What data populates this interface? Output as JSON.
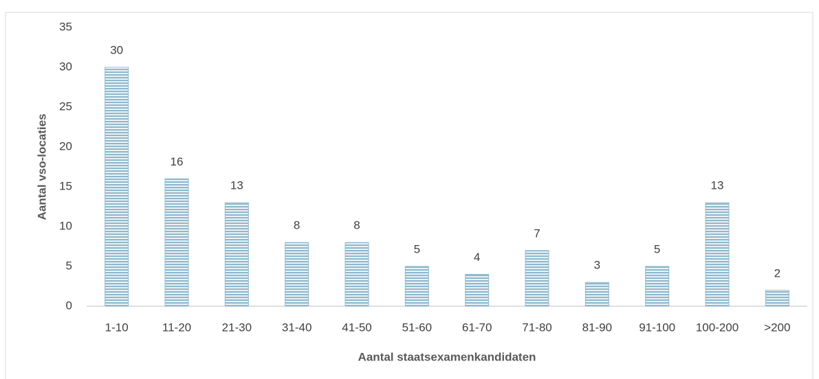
{
  "chart_data": {
    "type": "bar",
    "x_label": "Aantal staatsexamenkandidaten",
    "y_label": "Aantal vso-locaties",
    "categories": [
      "1-10",
      "11-20",
      "21-30",
      "31-40",
      "41-50",
      "51-60",
      "61-70",
      "71-80",
      "81-90",
      "91-100",
      "100-200",
      ">200"
    ],
    "values": [
      30,
      16,
      13,
      8,
      8,
      5,
      4,
      7,
      3,
      5,
      13,
      2
    ],
    "color": "#8fb8cc",
    "ylim": [
      0,
      35
    ],
    "yticks": [
      0,
      5,
      10,
      15,
      20,
      25,
      30,
      35
    ],
    "grid": false
  }
}
